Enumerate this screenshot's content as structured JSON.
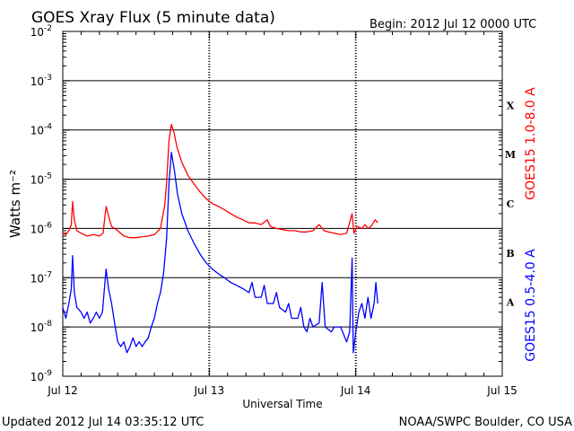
{
  "header": {
    "title": "GOES Xray Flux (5 minute data)",
    "begin": "Begin:  2012 Jul 12 0000 UTC"
  },
  "footer": {
    "updated": "Updated 2012 Jul 14 03:35:12 UTC",
    "source": "NOAA/SWPC Boulder, CO USA"
  },
  "chart_data": {
    "type": "line",
    "title": "GOES Xray Flux (5 minute data)",
    "xlabel": "Universal Time",
    "ylabel": "Watts m⁻²",
    "yscale": "log",
    "ylim": [
      1e-09,
      0.01
    ],
    "xlim": [
      0,
      72
    ],
    "x_unit_note": "hours since 2012 Jul 12 0000 UTC",
    "x_ticks": [
      {
        "x": 0,
        "label": "Jul 12"
      },
      {
        "x": 24,
        "label": "Jul 13"
      },
      {
        "x": 48,
        "label": "Jul 14"
      },
      {
        "x": 72,
        "label": "Jul 15"
      }
    ],
    "y_ticks": [
      {
        "exp": -2,
        "label": "10",
        "sup": "-2"
      },
      {
        "exp": -3,
        "label": "10",
        "sup": "-3"
      },
      {
        "exp": -4,
        "label": "10",
        "sup": "-4"
      },
      {
        "exp": -5,
        "label": "10",
        "sup": "-5"
      },
      {
        "exp": -6,
        "label": "10",
        "sup": "-6"
      },
      {
        "exp": -7,
        "label": "10",
        "sup": "-7"
      },
      {
        "exp": -8,
        "label": "10",
        "sup": "-8"
      },
      {
        "exp": -9,
        "label": "10",
        "sup": "-9"
      }
    ],
    "flare_classes": [
      {
        "label": "X",
        "exp": -3.5
      },
      {
        "label": "M",
        "exp": -4.5
      },
      {
        "label": "C",
        "exp": -5.5
      },
      {
        "label": "B",
        "exp": -6.5
      },
      {
        "label": "A",
        "exp": -7.5
      }
    ],
    "grid": "horizontal lines at each decade; dashed vertical lines at day boundaries",
    "series": [
      {
        "name": "GOES15 1.0-8.0 A",
        "color": "#ff0000",
        "points": [
          [
            0,
            8e-07
          ],
          [
            0.5,
            7.5e-07
          ],
          [
            1,
            9e-07
          ],
          [
            1.4,
            1.2e-06
          ],
          [
            1.6,
            3.5e-06
          ],
          [
            1.9,
            1.5e-06
          ],
          [
            2.3,
            9e-07
          ],
          [
            3,
            8e-07
          ],
          [
            4,
            7e-07
          ],
          [
            5,
            7.5e-07
          ],
          [
            6,
            7e-07
          ],
          [
            6.6,
            8e-07
          ],
          [
            7.1,
            2.8e-06
          ],
          [
            7.5,
            1.8e-06
          ],
          [
            8,
            1.1e-06
          ],
          [
            9,
            9e-07
          ],
          [
            10,
            7e-07
          ],
          [
            11,
            6.5e-07
          ],
          [
            12,
            6.5e-07
          ],
          [
            13,
            6.8e-07
          ],
          [
            14,
            7e-07
          ],
          [
            15,
            7.5e-07
          ],
          [
            16,
            1e-06
          ],
          [
            16.7,
            3e-06
          ],
          [
            17,
            8e-06
          ],
          [
            17.4,
            6e-05
          ],
          [
            17.8,
            0.00013
          ],
          [
            18.2,
            9e-05
          ],
          [
            18.7,
            4.5e-05
          ],
          [
            19.5,
            2.2e-05
          ],
          [
            20.5,
            1.2e-05
          ],
          [
            21.5,
            8e-06
          ],
          [
            22.5,
            5.5e-06
          ],
          [
            23.5,
            4e-06
          ],
          [
            24.5,
            3.2e-06
          ],
          [
            25.5,
            2.8e-06
          ],
          [
            26.5,
            2.4e-06
          ],
          [
            27.5,
            2e-06
          ],
          [
            28.5,
            1.7e-06
          ],
          [
            29.5,
            1.5e-06
          ],
          [
            30.5,
            1.3e-06
          ],
          [
            31.5,
            1.3e-06
          ],
          [
            32.5,
            1.2e-06
          ],
          [
            33.5,
            1.5e-06
          ],
          [
            34,
            1.1e-06
          ],
          [
            35,
            1e-06
          ],
          [
            36,
            9.5e-07
          ],
          [
            37,
            9e-07
          ],
          [
            38,
            9e-07
          ],
          [
            39,
            8.5e-07
          ],
          [
            40,
            8.5e-07
          ],
          [
            41,
            9e-07
          ],
          [
            42,
            1.2e-06
          ],
          [
            42.8,
            9e-07
          ],
          [
            43.5,
            8.5e-07
          ],
          [
            44.5,
            8e-07
          ],
          [
            45.5,
            7.5e-07
          ],
          [
            46.5,
            8e-07
          ],
          [
            47.4,
            2e-06
          ],
          [
            47.7,
            8e-07
          ],
          [
            48.2,
            1.1e-06
          ],
          [
            49,
            1e-06
          ],
          [
            49.5,
            1.2e-06
          ],
          [
            50,
            1e-06
          ],
          [
            50.5,
            1.1e-06
          ],
          [
            51.2,
            1.5e-06
          ],
          [
            51.6,
            1.3e-06
          ]
        ]
      },
      {
        "name": "GOES15 0.5-4.0 A",
        "color": "#0000ff",
        "points": [
          [
            0,
            2.5e-08
          ],
          [
            0.5,
            1.5e-08
          ],
          [
            1,
            3e-08
          ],
          [
            1.4,
            6e-08
          ],
          [
            1.6,
            2.8e-07
          ],
          [
            1.9,
            5e-08
          ],
          [
            2.3,
            2.5e-08
          ],
          [
            3,
            2e-08
          ],
          [
            3.5,
            1.5e-08
          ],
          [
            4,
            2e-08
          ],
          [
            4.5,
            1.2e-08
          ],
          [
            5,
            1.5e-08
          ],
          [
            5.5,
            2e-08
          ],
          [
            6,
            1.5e-08
          ],
          [
            6.5,
            2e-08
          ],
          [
            7.1,
            1.5e-07
          ],
          [
            7.5,
            6e-08
          ],
          [
            8,
            3e-08
          ],
          [
            8.5,
            1.2e-08
          ],
          [
            9,
            5e-09
          ],
          [
            9.5,
            4e-09
          ],
          [
            10,
            5e-09
          ],
          [
            10.5,
            3e-09
          ],
          [
            11,
            4e-09
          ],
          [
            11.5,
            6e-09
          ],
          [
            12,
            4e-09
          ],
          [
            12.5,
            5e-09
          ],
          [
            13,
            4e-09
          ],
          [
            13.5,
            5e-09
          ],
          [
            14,
            6e-09
          ],
          [
            14.5,
            1e-08
          ],
          [
            15,
            1.5e-08
          ],
          [
            15.5,
            3e-08
          ],
          [
            16,
            5e-08
          ],
          [
            16.5,
            1.2e-07
          ],
          [
            17,
            6e-07
          ],
          [
            17.4,
            8e-06
          ],
          [
            17.8,
            3.5e-05
          ],
          [
            18.3,
            1.5e-05
          ],
          [
            18.8,
            5e-06
          ],
          [
            19.5,
            2e-06
          ],
          [
            20.5,
            9e-07
          ],
          [
            21.5,
            5e-07
          ],
          [
            22.5,
            3e-07
          ],
          [
            23.5,
            2e-07
          ],
          [
            24.5,
            1.5e-07
          ],
          [
            25.5,
            1.2e-07
          ],
          [
            26.5,
            1e-07
          ],
          [
            27.5,
            8e-08
          ],
          [
            28.5,
            7e-08
          ],
          [
            29.5,
            6e-08
          ],
          [
            30.5,
            5e-08
          ],
          [
            31,
            8e-08
          ],
          [
            31.5,
            4e-08
          ],
          [
            32.5,
            4e-08
          ],
          [
            33,
            7e-08
          ],
          [
            33.5,
            3e-08
          ],
          [
            34.5,
            3e-08
          ],
          [
            35,
            5e-08
          ],
          [
            35.5,
            2.5e-08
          ],
          [
            36.5,
            2e-08
          ],
          [
            37,
            3e-08
          ],
          [
            37.5,
            1.5e-08
          ],
          [
            38.5,
            1.5e-08
          ],
          [
            39,
            2.5e-08
          ],
          [
            39.5,
            1e-08
          ],
          [
            40,
            8e-09
          ],
          [
            40.5,
            1.5e-08
          ],
          [
            41,
            1e-08
          ],
          [
            42,
            1.2e-08
          ],
          [
            42.5,
            8e-08
          ],
          [
            43,
            1e-08
          ],
          [
            44,
            8e-09
          ],
          [
            44.5,
            1e-08
          ],
          [
            45.5,
            1e-08
          ],
          [
            46.5,
            5e-09
          ],
          [
            47,
            8e-09
          ],
          [
            47.4,
            2.5e-07
          ],
          [
            47.6,
            3e-09
          ],
          [
            48,
            8e-09
          ],
          [
            48.5,
            2e-08
          ],
          [
            49,
            3e-08
          ],
          [
            49.5,
            1.5e-08
          ],
          [
            50,
            4e-08
          ],
          [
            50.5,
            1.5e-08
          ],
          [
            51,
            3e-08
          ],
          [
            51.3,
            8e-08
          ],
          [
            51.6,
            3e-08
          ]
        ]
      }
    ]
  }
}
